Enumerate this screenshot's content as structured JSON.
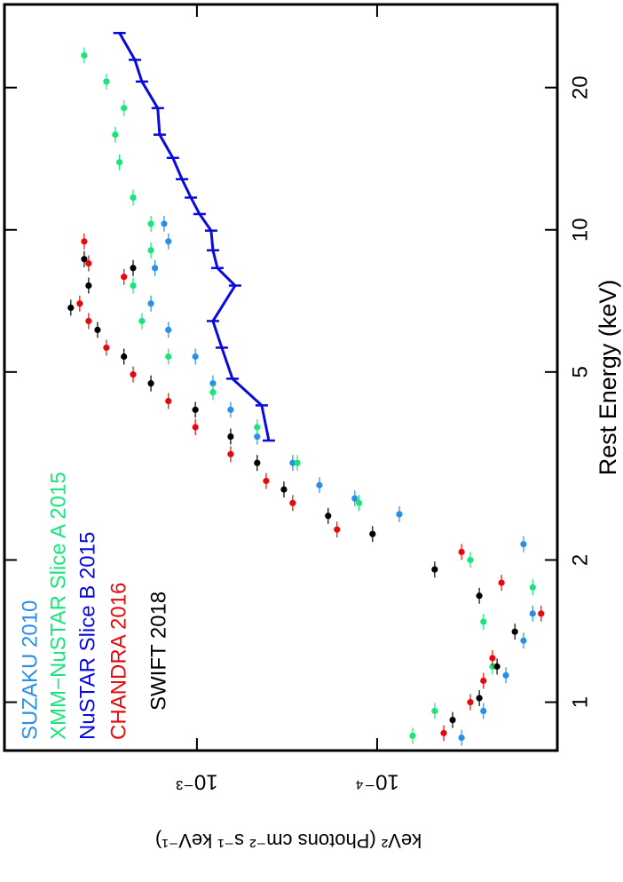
{
  "chart_data": {
    "type": "scatter",
    "xlabel": "Rest Energy (keV)",
    "ylabel": "keV² (Photons cm⁻² s⁻¹ keV⁻¹)",
    "xscale": "log",
    "yscale": "log",
    "xlim": [
      0.79,
      30
    ],
    "ylim": [
      1e-05,
      0.0117
    ],
    "xticks": [
      1,
      2,
      5,
      10,
      20
    ],
    "yticks": [
      {
        "value": 0.0001,
        "label": "10⁻⁴"
      },
      {
        "value": 0.001,
        "label": "10⁻³"
      }
    ],
    "series": [
      {
        "name": "SUZAKU 2010",
        "color": "#2a8fe8",
        "marker": "circle",
        "x": [
          0.841,
          0.958,
          1.14,
          1.35,
          1.54,
          2.16,
          2.5,
          2.7,
          2.88,
          3.21,
          3.65,
          4.16,
          4.73,
          5.39,
          6.14,
          6.98,
          8.3,
          9.45,
          10.3
        ],
        "values": [
          3.4e-05,
          2.57e-05,
          1.93e-05,
          1.54e-05,
          1.37e-05,
          1.54e-05,
          7.53e-05,
          0.000133,
          0.000209,
          0.000294,
          0.000463,
          0.00065,
          0.000815,
          0.00102,
          0.00144,
          0.0018,
          0.00171,
          0.00144,
          0.00152
        ]
      },
      {
        "name": "XMM−NuSTAR Slice A 2015",
        "color": "#19e67a",
        "marker": "circle",
        "x": [
          0.849,
          0.958,
          1.19,
          1.48,
          1.75,
          2.0,
          2.64,
          3.21,
          3.82,
          4.53,
          5.39,
          6.41,
          7.62,
          9.05,
          10.3,
          11.7,
          13.9,
          15.9,
          18.1,
          20.6,
          23.4
        ],
        "values": [
          6.35e-05,
          4.79e-05,
          2.29e-05,
          2.57e-05,
          1.37e-05,
          3.04e-05,
          0.000126,
          0.000277,
          0.000463,
          0.000815,
          0.00144,
          0.00202,
          0.00226,
          0.0018,
          0.0018,
          0.00226,
          0.00269,
          0.00284,
          0.00254,
          0.00318,
          0.00422
        ]
      },
      {
        "name": "NuSTAR Slice B 2015",
        "color": "#0a0adc",
        "marker": "line",
        "x": [
          3.58,
          4.25,
          4.84,
          5.63,
          6.41,
          7.62,
          8.3,
          9.05,
          9.96,
          10.8,
          11.7,
          12.8,
          14.2,
          15.9,
          18.1,
          20.6,
          22.9,
          26.1
        ],
        "values": [
          0.000399,
          0.000437,
          0.000635,
          0.000728,
          0.000815,
          0.000614,
          0.00077,
          0.000815,
          0.000834,
          0.000967,
          0.00108,
          0.00121,
          0.00136,
          0.00161,
          0.00165,
          0.00202,
          0.00221,
          0.00269
        ]
      },
      {
        "name": "CHANDRA 2016",
        "color": "#e60a0a",
        "marker": "circle",
        "x": [
          0.86,
          1.0,
          1.11,
          1.24,
          1.54,
          1.79,
          2.08,
          2.32,
          2.64,
          2.94,
          3.35,
          3.82,
          4.34,
          4.94,
          5.63,
          6.41,
          6.98,
          7.95,
          8.49,
          9.45
        ],
        "values": [
          4.27e-05,
          3.04e-05,
          2.57e-05,
          2.29e-05,
          1.23e-05,
          2.04e-05,
          3.4e-05,
          0.000167,
          0.000294,
          0.000413,
          0.00065,
          0.00102,
          0.00144,
          0.00226,
          0.00318,
          0.00399,
          0.00447,
          0.00254,
          0.00399,
          0.00422
        ]
      },
      {
        "name": "SWIFT 2018",
        "color": "#000000",
        "marker": "circle",
        "x": [
          0.917,
          1.02,
          1.19,
          1.41,
          1.68,
          1.91,
          2.27,
          2.48,
          2.82,
          3.21,
          3.65,
          4.16,
          4.73,
          5.39,
          6.14,
          6.84,
          7.62,
          8.3,
          8.67
        ],
        "values": [
          3.81e-05,
          2.71e-05,
          2.16e-05,
          1.72e-05,
          2.71e-05,
          4.79e-05,
          0.000106,
          0.000187,
          0.000329,
          0.000463,
          0.00065,
          0.00102,
          0.0018,
          0.00254,
          0.00356,
          0.00501,
          0.00399,
          0.00226,
          0.00422
        ]
      }
    ]
  }
}
